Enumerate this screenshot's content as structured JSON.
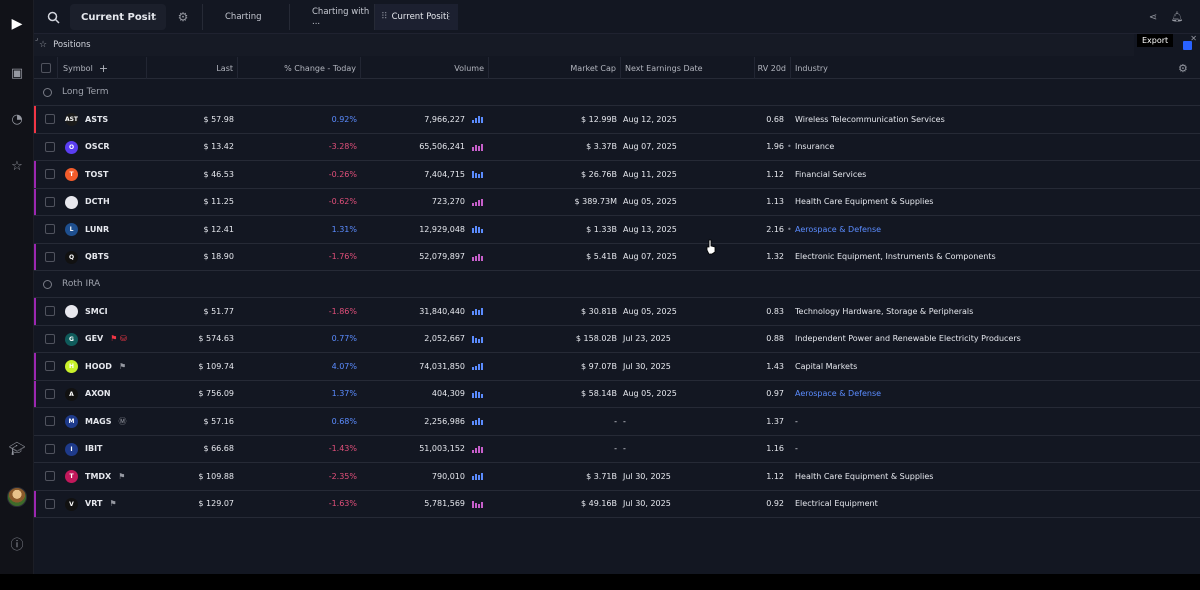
{
  "topbar": {
    "watchlist": "Current Posit",
    "tabs": [
      {
        "label": "Charting"
      },
      {
        "label": "Charting with ..."
      },
      {
        "label": "Current Positi"
      }
    ]
  },
  "tooltip": {
    "export": "Export"
  },
  "panel": {
    "title": "Positions"
  },
  "columns": {
    "symbol": "Symbol",
    "last": "Last",
    "change": "% Change - Today",
    "volume": "Volume",
    "market_cap": "Market Cap",
    "earnings": "Next Earnings Date",
    "rv": "RV 20d",
    "industry": "Industry"
  },
  "groups": [
    {
      "name": "Long Term",
      "rows": [
        {
          "symbol": "ASTS",
          "last": "$ 57.98",
          "change": "0.92%",
          "dir": "up",
          "volume": "7,966,227",
          "market_cap": "$ 12.99B",
          "earnings": "Aug 12, 2025",
          "rv": "0.68",
          "industry": "Wireless Telecommunication Services",
          "link": false,
          "flag": "#f23645",
          "logo": "#1b1b1b",
          "logo_text": "AST"
        },
        {
          "symbol": "OSCR",
          "last": "$ 13.42",
          "change": "-3.28%",
          "dir": "down",
          "volume": "65,506,241",
          "market_cap": "$ 3.37B",
          "earnings": "Aug 07, 2025",
          "rv": "1.96",
          "industry": "Insurance",
          "link": false,
          "flag": "",
          "logo": "#5a3df0",
          "logo_text": "O",
          "dot": true
        },
        {
          "symbol": "TOST",
          "last": "$ 46.53",
          "change": "-0.26%",
          "dir": "down",
          "volume": "7,404,715",
          "market_cap": "$ 26.76B",
          "earnings": "Aug 11, 2025",
          "rv": "1.12",
          "industry": "Financial Services",
          "link": false,
          "flag": "#9c27b0",
          "logo": "#f25c2b",
          "logo_text": "T"
        },
        {
          "symbol": "DCTH",
          "last": "$ 11.25",
          "change": "-0.62%",
          "dir": "down",
          "volume": "723,270",
          "market_cap": "$ 389.73M",
          "earnings": "Aug 05, 2025",
          "rv": "1.13",
          "industry": "Health Care Equipment & Supplies",
          "link": false,
          "flag": "#9c27b0",
          "logo": "#e8e8ee",
          "logo_text": ""
        },
        {
          "symbol": "LUNR",
          "last": "$ 12.41",
          "change": "1.31%",
          "dir": "up",
          "volume": "12,929,048",
          "market_cap": "$ 1.33B",
          "earnings": "Aug 13, 2025",
          "rv": "2.16",
          "industry": "Aerospace & Defense",
          "link": true,
          "flag": "",
          "logo": "#1e4f8f",
          "logo_text": "L",
          "dot": true
        },
        {
          "symbol": "QBTS",
          "last": "$ 18.90",
          "change": "-1.76%",
          "dir": "down",
          "volume": "52,079,897",
          "market_cap": "$ 5.41B",
          "earnings": "Aug 07, 2025",
          "rv": "1.32",
          "industry": "Electronic Equipment, Instruments & Components",
          "link": false,
          "flag": "#9c27b0",
          "logo": "#111",
          "logo_text": "Q"
        }
      ]
    },
    {
      "name": "Roth IRA",
      "rows": [
        {
          "symbol": "SMCI",
          "last": "$ 51.77",
          "change": "-1.86%",
          "dir": "down",
          "volume": "31,840,440",
          "market_cap": "$ 30.81B",
          "earnings": "Aug 05, 2025",
          "rv": "0.83",
          "industry": "Technology Hardware, Storage & Peripherals",
          "link": false,
          "flag": "#9c27b0",
          "logo": "#e8e8ee",
          "logo_text": ""
        },
        {
          "symbol": "GEV",
          "last": "$ 574.63",
          "change": "0.77%",
          "dir": "up",
          "volume": "2,052,667",
          "market_cap": "$ 158.02B",
          "earnings": "Jul 23, 2025",
          "rv": "0.88",
          "industry": "Independent Power and Renewable Electricity Producers",
          "link": false,
          "flag": "",
          "logo": "#0f5b5b",
          "logo_text": "G",
          "tag": "⚑ ⛁",
          "tag_color": "#f23645"
        },
        {
          "symbol": "HOOD",
          "last": "$ 109.74",
          "change": "4.07%",
          "dir": "up",
          "volume": "74,031,850",
          "market_cap": "$ 97.07B",
          "earnings": "Jul 30, 2025",
          "rv": "1.43",
          "industry": "Capital Markets",
          "link": false,
          "flag": "#9c27b0",
          "logo": "#c9f02b",
          "logo_text": "H",
          "tag": "⚑",
          "tag_color": "#9598a1"
        },
        {
          "symbol": "AXON",
          "last": "$ 756.09",
          "change": "1.37%",
          "dir": "up",
          "volume": "404,309",
          "market_cap": "$ 58.14B",
          "earnings": "Aug 05, 2025",
          "rv": "0.97",
          "industry": "Aerospace & Defense",
          "link": true,
          "flag": "#9c27b0",
          "logo": "#111",
          "logo_text": "A"
        },
        {
          "symbol": "MAGS",
          "last": "$ 57.16",
          "change": "0.68%",
          "dir": "up",
          "volume": "2,256,986",
          "market_cap": "-",
          "earnings": "-",
          "rv": "1.37",
          "industry": "-",
          "link": false,
          "flag": "",
          "logo": "#1e3a8a",
          "logo_text": "M",
          "tag": "Ⓜ",
          "tag_color": "#9598a1"
        },
        {
          "symbol": "IBIT",
          "last": "$ 66.68",
          "change": "-1.43%",
          "dir": "down",
          "volume": "51,003,152",
          "market_cap": "-",
          "earnings": "-",
          "rv": "1.16",
          "industry": "-",
          "link": false,
          "flag": "",
          "logo": "#1e3a8a",
          "logo_text": "I"
        },
        {
          "symbol": "TMDX",
          "last": "$ 109.88",
          "change": "-2.35%",
          "dir": "down",
          "volume": "790,010",
          "market_cap": "$ 3.71B",
          "earnings": "Jul 30, 2025",
          "rv": "1.12",
          "industry": "Health Care Equipment & Supplies",
          "link": false,
          "flag": "",
          "logo": "#c2185b",
          "logo_text": "T",
          "tag": "⚑",
          "tag_color": "#9598a1"
        },
        {
          "symbol": "VRT",
          "last": "$ 129.07",
          "change": "-1.63%",
          "dir": "down",
          "volume": "5,781,569",
          "market_cap": "$ 49.16B",
          "earnings": "Jul 30, 2025",
          "rv": "0.92",
          "industry": "Electrical Equipment",
          "link": false,
          "flag": "#9c27b0",
          "logo": "#111",
          "logo_text": "V",
          "tag": "⚑",
          "tag_color": "#9598a1"
        }
      ]
    }
  ]
}
